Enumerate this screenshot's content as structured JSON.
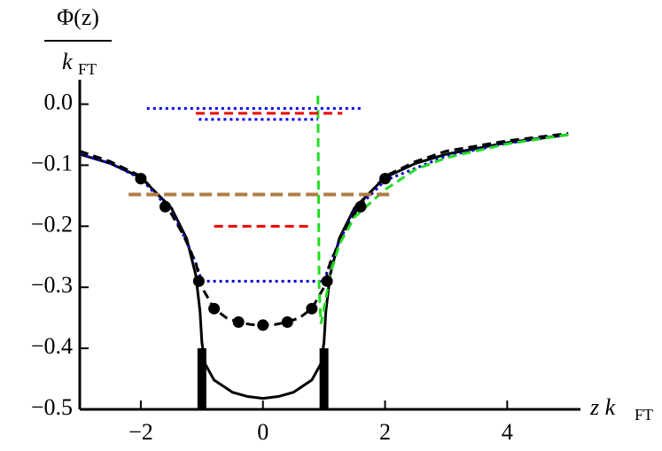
{
  "chart_data": {
    "type": "line",
    "y_label": {
      "numerator": "Φ(z)",
      "denominator": "k",
      "denominator_sub": "FT"
    },
    "x_label": {
      "text": "z k",
      "sub": "FT"
    },
    "xlim": [
      -3,
      5.2
    ],
    "ylim": [
      -0.5,
      0.04
    ],
    "xticks": [
      {
        "value": -2,
        "label": "−2"
      },
      0,
      2,
      4
    ],
    "yticks": [
      {
        "value": 0,
        "label": "0.0"
      },
      {
        "value": -0.1,
        "label": "−0.1"
      },
      {
        "value": -0.2,
        "label": "−0.2"
      },
      {
        "value": -0.3,
        "label": "−0.3"
      },
      {
        "value": -0.4,
        "label": "−0.4"
      },
      {
        "value": -0.5,
        "label": "−0.5"
      }
    ],
    "series": [
      {
        "color": "#000000",
        "style": "solid",
        "x": [
          -3,
          -2.5,
          -2,
          -1.5,
          -1.25,
          -1.1,
          -1.03,
          -1,
          -0.95,
          -0.8,
          -0.5,
          -0.25,
          0,
          0.25,
          0.5,
          0.8,
          0.95,
          1,
          1.03,
          1.1,
          1.25,
          1.5,
          2,
          2.5,
          3,
          4,
          5
        ],
        "values": [
          -0.082,
          -0.097,
          -0.12,
          -0.17,
          -0.22,
          -0.28,
          -0.34,
          -0.39,
          -0.425,
          -0.452,
          -0.472,
          -0.479,
          -0.482,
          -0.479,
          -0.472,
          -0.452,
          -0.425,
          -0.39,
          -0.34,
          -0.28,
          -0.22,
          -0.17,
          -0.12,
          -0.097,
          -0.082,
          -0.063,
          -0.05
        ]
      },
      {
        "color": "#0000cc",
        "style": "dotted",
        "x": [
          -3,
          -2.5,
          -2,
          -1.5,
          -1.25,
          -1.1,
          -1,
          1,
          1.1,
          1.25,
          1.5,
          2,
          3,
          4,
          5
        ],
        "values": [
          -0.082,
          -0.097,
          -0.122,
          -0.175,
          -0.225,
          -0.26,
          -0.29,
          -0.29,
          -0.26,
          -0.225,
          -0.175,
          -0.125,
          -0.085,
          -0.064,
          -0.05
        ]
      },
      {
        "color": "#000000",
        "style": "dashed",
        "x": [
          -3,
          -2.5,
          -2,
          -1.6,
          -1.3,
          -1.1,
          -1,
          -0.8,
          -0.6,
          -0.4,
          -0.2,
          0,
          0.2,
          0.4,
          0.6,
          0.8,
          1,
          1.1,
          1.3,
          1.6,
          2,
          2.5,
          3,
          4,
          5
        ],
        "values": [
          -0.077,
          -0.094,
          -0.118,
          -0.162,
          -0.215,
          -0.26,
          -0.3,
          -0.335,
          -0.35,
          -0.357,
          -0.361,
          -0.362,
          -0.361,
          -0.357,
          -0.35,
          -0.335,
          -0.3,
          -0.26,
          -0.215,
          -0.162,
          -0.118,
          -0.094,
          -0.077,
          -0.06,
          -0.048
        ]
      },
      {
        "color": "#22dd22",
        "style": "dashed",
        "x": [
          0.9,
          0.92,
          0.95,
          1,
          1.1,
          1.25,
          1.5,
          2,
          2.5,
          3,
          4,
          5
        ],
        "values": [
          0.014,
          -0.3,
          -0.36,
          -0.335,
          -0.28,
          -0.23,
          -0.185,
          -0.14,
          -0.107,
          -0.088,
          -0.065,
          -0.05
        ]
      },
      {
        "color": "#0000ee",
        "style": "dotted",
        "x": [
          -1.9,
          1.6
        ],
        "values": [
          -0.007,
          -0.007
        ]
      },
      {
        "color": "#0000ee",
        "style": "dotted",
        "x": [
          -1.05,
          0.9
        ],
        "values": [
          -0.025,
          -0.025
        ]
      },
      {
        "color": "#ee0000",
        "style": "dashed",
        "x": [
          -1.1,
          1.3
        ],
        "values": [
          -0.015,
          -0.015
        ]
      },
      {
        "color": "#ee0000",
        "style": "dashed",
        "x": [
          -0.8,
          0.8
        ],
        "values": [
          -0.2,
          -0.2
        ]
      },
      {
        "color": "#b07d45",
        "style": "thickdashed",
        "x": [
          -2.2,
          2.1
        ],
        "values": [
          -0.148,
          -0.148
        ]
      }
    ],
    "points": {
      "color": "#000000",
      "x": [
        -2,
        -1.6,
        -1.05,
        -0.8,
        -0.4,
        0,
        0.4,
        0.8,
        1.05,
        1.6,
        2
      ],
      "values": [
        -0.122,
        -0.168,
        -0.29,
        -0.335,
        -0.357,
        -0.362,
        -0.357,
        -0.335,
        -0.29,
        -0.168,
        -0.122
      ]
    },
    "walls": {
      "color": "#000000",
      "x": [
        -1,
        1
      ],
      "values": [
        -0.4,
        -0.4
      ]
    }
  }
}
